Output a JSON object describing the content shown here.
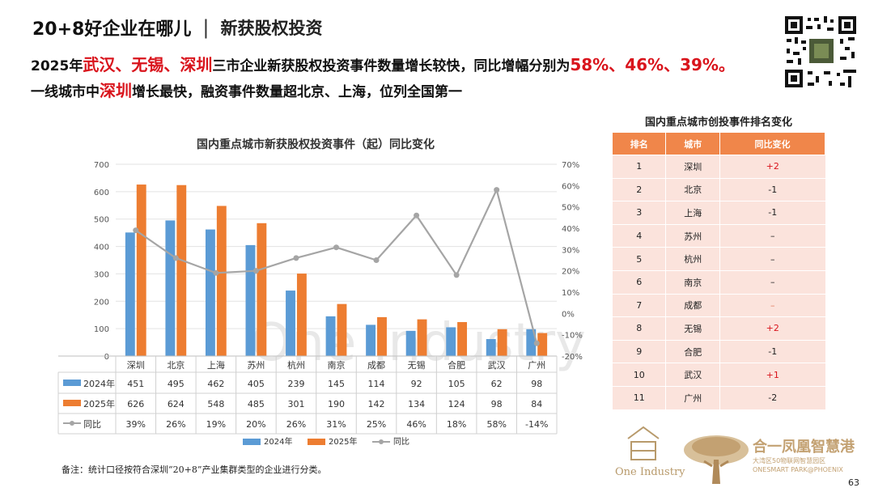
{
  "header": {
    "title": "20+8好企业在哪儿",
    "separator": "|",
    "subtitle": "新获股权投资"
  },
  "headline": {
    "line1_prefix": "2025年",
    "line1_cities": "武汉、无锡、深圳",
    "line1_mid": "三市企业新获股权投资事件数量增长较快，同比增幅分别为",
    "line1_pcts": "58%、46%、39%。",
    "line2_prefix": "一线城市中",
    "line2_city": "深圳",
    "line2_suffix": "增长最快，融资事件数量超北京、上海，位列全国第一"
  },
  "chart_data": {
    "type": "bar",
    "title": "国内重点城市新获股权投资事件（起）同比变化",
    "categories": [
      "深圳",
      "北京",
      "上海",
      "苏州",
      "杭州",
      "南京",
      "成都",
      "无锡",
      "合肥",
      "武汉",
      "广州"
    ],
    "series": [
      {
        "name": "2024年",
        "type": "bar",
        "axis": "left",
        "color": "#5b9bd5",
        "values": [
          451,
          495,
          462,
          405,
          239,
          145,
          114,
          92,
          105,
          62,
          98
        ]
      },
      {
        "name": "2025年",
        "type": "bar",
        "axis": "left",
        "color": "#ed7d31",
        "values": [
          626,
          624,
          548,
          485,
          301,
          190,
          142,
          134,
          124,
          98,
          84
        ]
      },
      {
        "name": "同比",
        "type": "line",
        "axis": "right",
        "color": "#a5a5a5",
        "values": [
          39,
          26,
          19,
          20,
          26,
          31,
          25,
          46,
          18,
          58,
          -14
        ]
      }
    ],
    "table_labels": [
      "451",
      "495",
      "462",
      "405",
      "239",
      "145",
      "114",
      "92",
      "105",
      "62",
      "98"
    ],
    "table_labels_2025": [
      "626",
      "624",
      "548",
      "485",
      "301",
      "190",
      "142",
      "134",
      "124",
      "98",
      "84"
    ],
    "table_labels_yoy": [
      "39%",
      "26%",
      "19%",
      "20%",
      "26%",
      "31%",
      "25%",
      "46%",
      "18%",
      "58%",
      "-14%"
    ],
    "ylim_left": [
      0,
      700
    ],
    "yticks_left": [
      "0",
      "100",
      "200",
      "300",
      "400",
      "500",
      "600",
      "700"
    ],
    "ylim_right": [
      -20,
      70
    ],
    "yticks_right": [
      "-20%",
      "-10%",
      "0%",
      "10%",
      "20%",
      "30%",
      "40%",
      "50%",
      "60%",
      "70%"
    ],
    "grid": true,
    "legend_position": "bottom"
  },
  "rank_table": {
    "title": "国内重点城市创投事件排名变化",
    "headers": [
      "排名",
      "城市",
      "同比变化"
    ],
    "rows": [
      {
        "rank": "1",
        "city": "深圳",
        "change": "+2",
        "kind": "up"
      },
      {
        "rank": "2",
        "city": "北京",
        "change": "-1",
        "kind": "down"
      },
      {
        "rank": "3",
        "city": "上海",
        "change": "-1",
        "kind": "down"
      },
      {
        "rank": "4",
        "city": "苏州",
        "change": "–",
        "kind": "same"
      },
      {
        "rank": "5",
        "city": "杭州",
        "change": "–",
        "kind": "same"
      },
      {
        "rank": "6",
        "city": "南京",
        "change": "–",
        "kind": "same"
      },
      {
        "rank": "7",
        "city": "成都",
        "change": "–",
        "kind": "dash"
      },
      {
        "rank": "8",
        "city": "无锡",
        "change": "+2",
        "kind": "up"
      },
      {
        "rank": "9",
        "city": "合肥",
        "change": "-1",
        "kind": "down"
      },
      {
        "rank": "10",
        "city": "武汉",
        "change": "+1",
        "kind": "up"
      },
      {
        "rank": "11",
        "city": "广州",
        "change": "-2",
        "kind": "down"
      }
    ]
  },
  "note": "备注：统计口径按符合深圳“20+8”产业集群类型的企业进行分类。",
  "page_number": "63",
  "logos": {
    "one_industry": "One Industry",
    "park_cn": "合一凤凰智慧港",
    "park_line1": "大湾区50物联网智慧园区",
    "park_line2": "ONESMART PARK@PHOENIX",
    "watermark": "One Industry"
  },
  "colors": {
    "accent_red": "#d9141c",
    "table_header": "#f0864a",
    "table_cell": "#fbe3dc",
    "bar_2024": "#5b9bd5",
    "bar_2025": "#ed7d31",
    "line_yoy": "#a5a5a5",
    "logo_gold": "#c3a172"
  }
}
